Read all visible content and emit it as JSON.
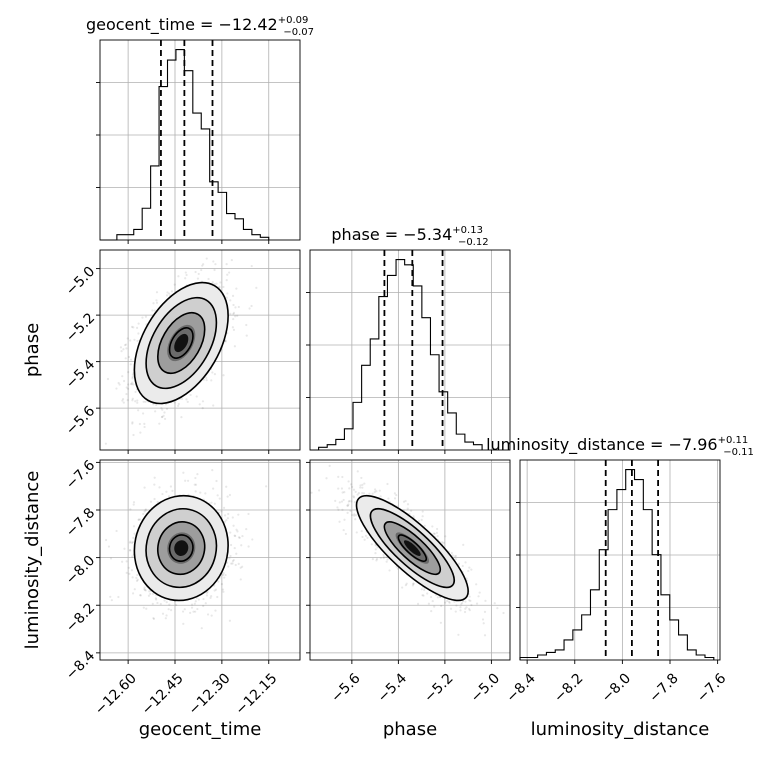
{
  "chart_data": {
    "type": "corner",
    "parameters": [
      {
        "name": "geocent_time",
        "title_prefix": "geocent_time = ",
        "median": "−12.42",
        "plus": "+0.09",
        "minus": "−0.07",
        "range": [
          -12.69,
          -12.05
        ],
        "ticks": [
          -12.6,
          -12.45,
          -12.3,
          -12.15
        ],
        "tick_labels": [
          "−12.60",
          "−12.45",
          "−12.30",
          "−12.15"
        ],
        "quantiles": [
          -12.495,
          -12.42,
          -12.33
        ],
        "hist": {
          "edges": [
            -12.69,
            -12.663,
            -12.636,
            -12.609,
            -12.582,
            -12.555,
            -12.528,
            -12.501,
            -12.474,
            -12.447,
            -12.42,
            -12.393,
            -12.366,
            -12.339,
            -12.312,
            -12.285,
            -12.258,
            -12.231,
            -12.204,
            -12.177,
            -12.15
          ],
          "counts": [
            0,
            0,
            1,
            1,
            2,
            6,
            14,
            29,
            34,
            36,
            32,
            24,
            21,
            11,
            9,
            5,
            4,
            2,
            1,
            0.5
          ]
        }
      },
      {
        "name": "phase",
        "title_prefix": "phase = ",
        "median": "−5.34",
        "plus": "+0.13",
        "minus": "−0.12",
        "range": [
          -5.78,
          -4.92
        ],
        "ticks": [
          -5.6,
          -5.4,
          -5.2,
          -5.0
        ],
        "tick_labels": [
          "−5.6",
          "−5.4",
          "−5.2",
          "−5.0"
        ],
        "quantiles": [
          -5.46,
          -5.34,
          -5.21
        ],
        "hist": {
          "edges": [
            -5.78,
            -5.743,
            -5.706,
            -5.669,
            -5.632,
            -5.595,
            -5.558,
            -5.521,
            -5.484,
            -5.447,
            -5.41,
            -5.373,
            -5.336,
            -5.299,
            -5.262,
            -5.225,
            -5.188,
            -5.151,
            -5.114,
            -5.077,
            -5.04
          ],
          "counts": [
            0,
            0.5,
            1,
            2,
            4,
            9,
            16,
            21,
            29,
            33,
            36,
            35,
            31,
            25,
            18,
            11,
            7,
            3,
            1.5,
            1
          ]
        }
      },
      {
        "name": "luminosity_distance",
        "title_prefix": "luminosity_distance = ",
        "median": "−7.96",
        "plus": "+0.11",
        "minus": "−0.11",
        "range": [
          -8.43,
          -7.59
        ],
        "ticks": [
          -8.4,
          -8.2,
          -8.0,
          -7.8,
          -7.6
        ],
        "tick_labels": [
          "−8.4",
          "−8.2",
          "−8.0",
          "−7.8",
          "−7.6"
        ],
        "quantiles": [
          -8.07,
          -7.96,
          -7.85
        ],
        "hist": {
          "edges": [
            -8.43,
            -8.393,
            -8.356,
            -8.319,
            -8.282,
            -8.245,
            -8.208,
            -8.171,
            -8.134,
            -8.097,
            -8.06,
            -8.023,
            -7.986,
            -7.949,
            -7.912,
            -7.875,
            -7.838,
            -7.801,
            -7.764,
            -7.727,
            -7.69,
            -7.653,
            -7.616
          ],
          "counts": [
            0.5,
            0.5,
            1,
            1.5,
            2,
            4,
            6,
            9,
            14,
            22,
            30,
            34,
            38,
            36,
            30,
            21,
            13,
            8,
            5,
            2,
            1,
            0.5
          ]
        }
      }
    ],
    "density_pairs": [
      {
        "x": "geocent_time",
        "y": "phase",
        "mean": [
          -12.43,
          -5.32
        ],
        "sd": [
          0.075,
          0.13
        ],
        "rho": 0.45
      },
      {
        "x": "geocent_time",
        "y": "luminosity_distance",
        "mean": [
          -12.43,
          -7.96
        ],
        "sd": [
          0.075,
          0.11
        ],
        "rho": 0.05
      },
      {
        "x": "phase",
        "y": "luminosity_distance",
        "mean": [
          -5.34,
          -7.96
        ],
        "sd": [
          0.12,
          0.11
        ],
        "rho": -0.82
      }
    ],
    "xlabels": [
      "geocent_time",
      "phase",
      "luminosity_distance"
    ],
    "ylabels": [
      "phase",
      "luminosity_distance"
    ],
    "grid": true
  }
}
